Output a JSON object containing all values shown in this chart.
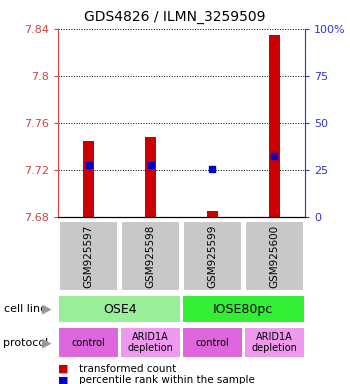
{
  "title": "GDS4826 / ILMN_3259509",
  "samples": [
    "GSM925597",
    "GSM925598",
    "GSM925599",
    "GSM925600"
  ],
  "bar_values": [
    7.745,
    7.748,
    7.685,
    7.835
  ],
  "bar_base": 7.68,
  "percentile_values": [
    7.724,
    7.724,
    7.721,
    7.732
  ],
  "ylim": [
    7.68,
    7.84
  ],
  "yticks": [
    7.68,
    7.72,
    7.76,
    7.8,
    7.84
  ],
  "ytick_labels": [
    "7.68",
    "7.72",
    "7.76",
    "7.8",
    "7.84"
  ],
  "right_yticks": [
    0,
    25,
    50,
    75,
    100
  ],
  "right_ytick_labels": [
    "0",
    "25",
    "50",
    "75",
    "100%"
  ],
  "bar_color": "#cc0000",
  "percentile_color": "#0000cc",
  "cell_line_groups": [
    {
      "label": "OSE4",
      "cols": [
        0,
        1
      ],
      "color": "#99ee99"
    },
    {
      "label": "IOSE80pc",
      "cols": [
        2,
        3
      ],
      "color": "#33ee33"
    }
  ],
  "protocol_groups": [
    {
      "label": "control",
      "col": 0,
      "color": "#dd66dd"
    },
    {
      "label": "ARID1A\ndepletion",
      "col": 1,
      "color": "#ee99ee"
    },
    {
      "label": "control",
      "col": 2,
      "color": "#dd66dd"
    },
    {
      "label": "ARID1A\ndepletion",
      "col": 3,
      "color": "#ee99ee"
    }
  ],
  "legend_items": [
    {
      "color": "#cc0000",
      "label": "transformed count"
    },
    {
      "color": "#0000cc",
      "label": "percentile rank within the sample"
    }
  ],
  "bg_color": "#c8c8c8",
  "left_tick_color": "#cc4444",
  "right_tick_color": "#3333cc",
  "title_fontsize": 10,
  "bar_width": 0.18
}
